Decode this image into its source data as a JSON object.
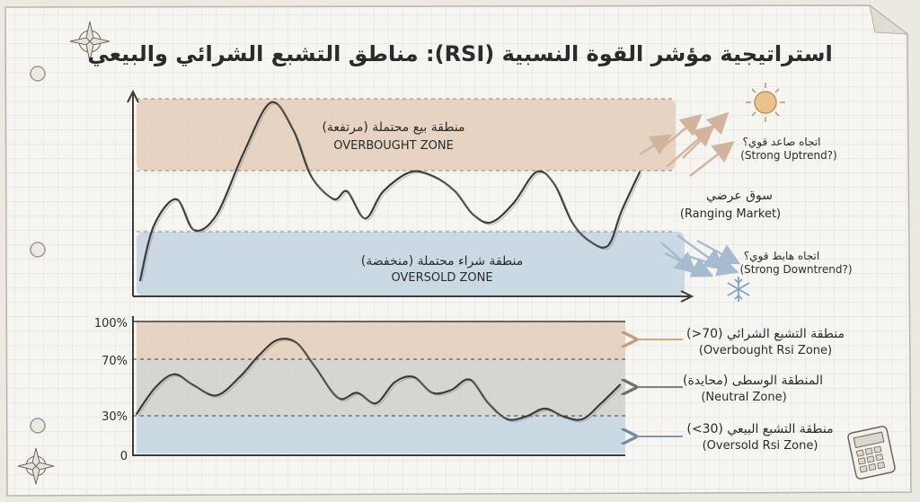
{
  "title": "استراتيجية مؤشر القوة النسبية (RSI): مناطق التشبع الشرائي والبيعي",
  "price_panel": {
    "overbought_ar": "منطقة بيع محتملة (مرتفعة)",
    "overbought_en": "OVERBOUGHT ZONE",
    "oversold_ar": "منطقة شراء محتملة (منخفضة)",
    "oversold_en": "OVERSOLD ZONE",
    "ranging_ar": "سوق عرضي",
    "ranging_en": "(Ranging Market)",
    "uptrend_ar": "اتجاه صاعد قوي؟",
    "uptrend_en": "(Strong Uptrend?)",
    "downtrend_ar": "اتجاه هابط قوي؟",
    "downtrend_en": "(Strong Downtrend?)"
  },
  "rsi_panel": {
    "ob_ar": "منطقة التشبع الشرائي (70<)",
    "ob_en": "(Overbought Rsi Zone)",
    "neutral_ar": "المنطقة الوسطى (محايدة)",
    "neutral_en": "(Neutral Zone)",
    "os_ar": "منطقة التشبع البيعي (30>)",
    "os_en": "(Oversold Rsi Zone)"
  },
  "colors": {
    "overbought_band": "#e3cdb8",
    "neutral_band": "#d0cfcd",
    "oversold_band": "#c5d6e3",
    "line": "#3d3b39",
    "arrow_up": "#d8b8a0",
    "arrow_down": "#a9bfd3",
    "paper": "#f7f5ef",
    "grid": "#d6dbe3"
  },
  "icons": [
    "compass-icon",
    "sun-icon",
    "snowflake-icon",
    "calculator-icon"
  ],
  "chart_data": [
    {
      "type": "line",
      "title": "",
      "series": [
        {
          "values": [
            6,
            34,
            48,
            32,
            40,
            72,
            98,
            84,
            60,
            48,
            52,
            38,
            52,
            62,
            60,
            52,
            40,
            36,
            46,
            62,
            56,
            36,
            26,
            24,
            42,
            62
          ],
          "x": [
            0,
            3,
            8,
            12,
            17,
            23,
            29,
            34,
            38,
            43,
            46,
            50,
            54,
            60,
            65,
            70,
            74,
            78,
            83,
            88,
            92,
            96,
            100,
            104,
            107,
            111
          ]
        }
      ],
      "zones": [
        "overbought",
        "ranging",
        "oversold"
      ]
    },
    {
      "type": "line",
      "ylabel_ticks": [
        "0",
        "30%",
        "70%",
        "100%"
      ],
      "ylim": [
        0,
        100
      ],
      "zones": [
        {
          "name": "overbought",
          "from": 70,
          "to": 100
        },
        {
          "name": "neutral",
          "from": 30,
          "to": 70
        },
        {
          "name": "oversold",
          "from": 0,
          "to": 30
        }
      ],
      "series": [
        {
          "x": [
            0,
            4,
            8,
            12,
            17,
            22,
            26,
            30,
            34,
            38,
            43,
            47,
            51,
            55,
            59,
            63,
            67,
            71,
            75,
            79,
            83,
            87,
            91,
            95,
            99,
            103
          ],
          "values": [
            30,
            50,
            60,
            52,
            44,
            58,
            74,
            86,
            84,
            66,
            42,
            46,
            38,
            54,
            58,
            46,
            48,
            56,
            38,
            26,
            28,
            34,
            28,
            26,
            38,
            52
          ]
        }
      ]
    }
  ]
}
